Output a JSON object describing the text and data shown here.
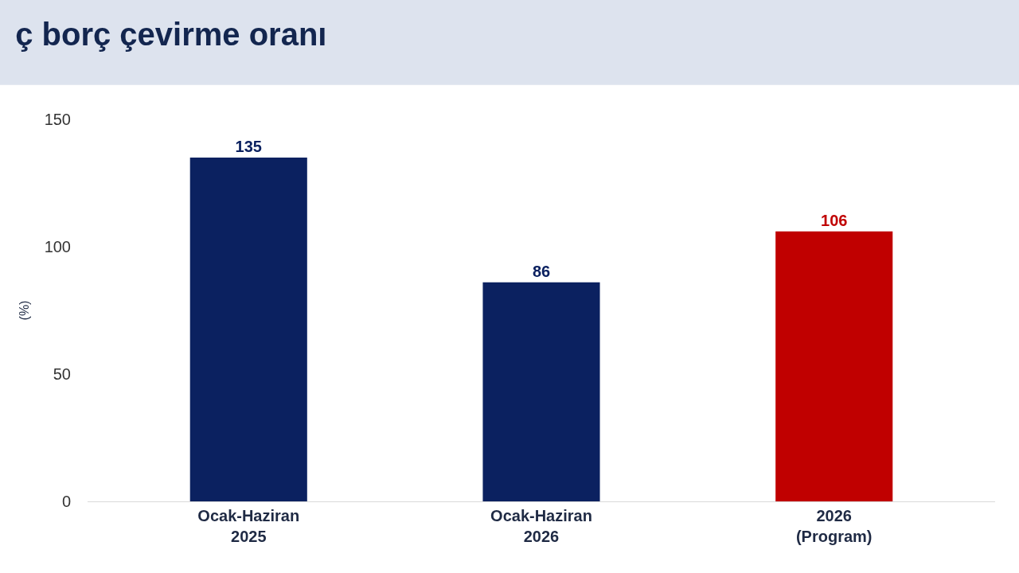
{
  "chart_data": {
    "type": "bar",
    "title": "ç borç çevirme oranı",
    "ylabel": "(%)",
    "categories": [
      "Ocak-Haziran\n2025",
      "Ocak-Haziran\n2026",
      "2026\n(Program)"
    ],
    "values": [
      135,
      86,
      106
    ],
    "colors": [
      "#0b2160",
      "#0b2160",
      "#c00000"
    ],
    "ylim": [
      0,
      150
    ],
    "yticks": [
      0,
      50,
      100,
      150
    ],
    "data_labels": true
  }
}
